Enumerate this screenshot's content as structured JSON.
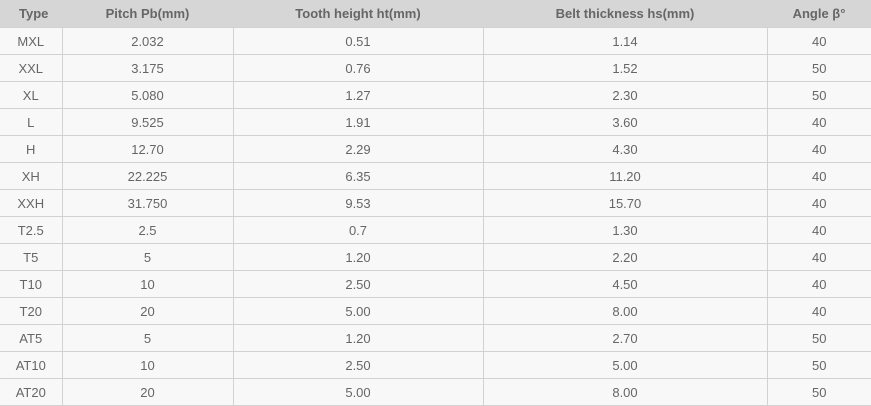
{
  "headers": [
    "Type",
    "Pitch Pb(mm)",
    "Tooth height ht(mm)",
    "Belt thickness hs(mm)",
    "Angle β°"
  ],
  "rows": [
    [
      "MXL",
      "2.032",
      "0.51",
      "1.14",
      "40"
    ],
    [
      "XXL",
      "3.175",
      "0.76",
      "1.52",
      "50"
    ],
    [
      "XL",
      "5.080",
      "1.27",
      "2.30",
      "50"
    ],
    [
      "L",
      "9.525",
      "1.91",
      "3.60",
      "40"
    ],
    [
      "H",
      "12.70",
      "2.29",
      "4.30",
      "40"
    ],
    [
      "XH",
      "22.225",
      "6.35",
      "11.20",
      "40"
    ],
    [
      "XXH",
      "31.750",
      "9.53",
      "15.70",
      "40"
    ],
    [
      "T2.5",
      "2.5",
      "0.7",
      "1.30",
      "40"
    ],
    [
      "T5",
      "5",
      "1.20",
      "2.20",
      "40"
    ],
    [
      "T10",
      "10",
      "2.50",
      "4.50",
      "40"
    ],
    [
      "T20",
      "20",
      "5.00",
      "8.00",
      "40"
    ],
    [
      "AT5",
      "5",
      "1.20",
      "2.70",
      "50"
    ],
    [
      "AT10",
      "10",
      "2.50",
      "5.00",
      "50"
    ],
    [
      "AT20",
      "20",
      "5.00",
      "8.00",
      "50"
    ]
  ]
}
